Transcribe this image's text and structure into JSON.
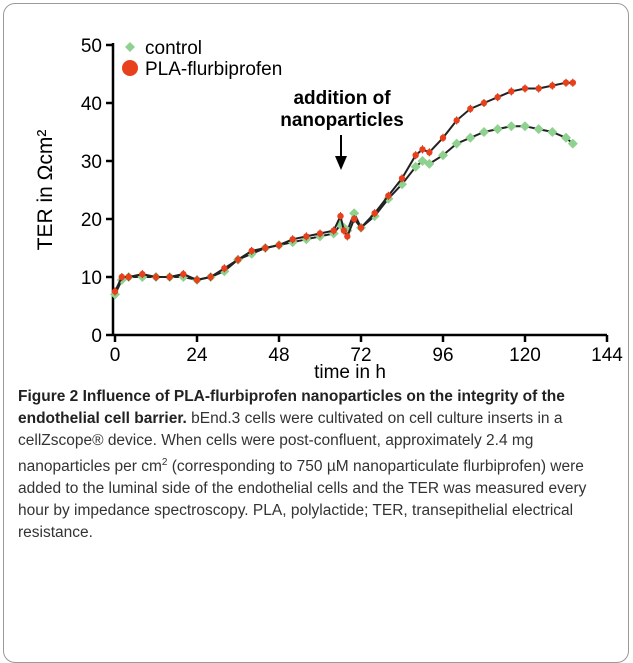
{
  "chart_data": {
    "type": "line",
    "xlabel": "time in h",
    "ylabel": "TER in Ωcm²",
    "annotation": [
      "addition of",
      "nanoparticles"
    ],
    "x": [
      0,
      2,
      4,
      8,
      12,
      16,
      20,
      24,
      28,
      32,
      36,
      40,
      44,
      48,
      52,
      56,
      60,
      64,
      66,
      67,
      68,
      70,
      72,
      76,
      80,
      84,
      88,
      90,
      92,
      96,
      100,
      104,
      108,
      112,
      116,
      120,
      124,
      128,
      132,
      134
    ],
    "series": [
      {
        "name": "control",
        "color": "#8fd18f",
        "marker": "diamond",
        "values": [
          7,
          9.5,
          10,
          10,
          10,
          10,
          10,
          9.5,
          10,
          11,
          13,
          14,
          15,
          15.5,
          16,
          16.5,
          17,
          17.5,
          19,
          18.5,
          18,
          21,
          18.5,
          20.5,
          23.5,
          26,
          29,
          30,
          29.5,
          31,
          33,
          34,
          35,
          35.5,
          36,
          36,
          35.5,
          35,
          34,
          33
        ]
      },
      {
        "name": "PLA-flurbiprofen",
        "color": "#e8401c",
        "marker": "circle",
        "values": [
          7.5,
          10,
          10,
          10.5,
          10,
          10,
          10.5,
          9.5,
          10,
          11.5,
          13,
          14.5,
          15,
          15.5,
          16.5,
          17,
          17.5,
          18,
          20.5,
          18,
          17,
          20,
          18.5,
          21,
          24,
          27,
          31,
          32,
          31.5,
          34,
          37,
          39,
          40,
          41,
          42,
          42.5,
          42.5,
          43,
          43.5,
          43.5
        ]
      }
    ],
    "xlim": [
      0,
      144
    ],
    "xticks": [
      0,
      24,
      48,
      72,
      96,
      120,
      144
    ],
    "ylim": [
      0,
      50
    ],
    "yticks": [
      0,
      10,
      20,
      30,
      40,
      50
    ],
    "legend": "upper left"
  },
  "caption": {
    "title": "Figure 2 Influence of PLA-flurbiprofen nanoparticles on the integrity of the endothelial cell barrier.",
    "body": [
      "bEnd.3 cells were cultivated on cell culture inserts in a cellZscope® device. When cells were post-confluent, approximately 2.4 mg nanoparticles per cm",
      "2",
      " (corresponding to 750 µM nanoparticulate flurbiprofen) were added to the luminal side of the endothelial cells and the TER was measured every hour by impedance spectroscopy. PLA, polylactide; TER, transepithelial electrical resistance."
    ]
  }
}
